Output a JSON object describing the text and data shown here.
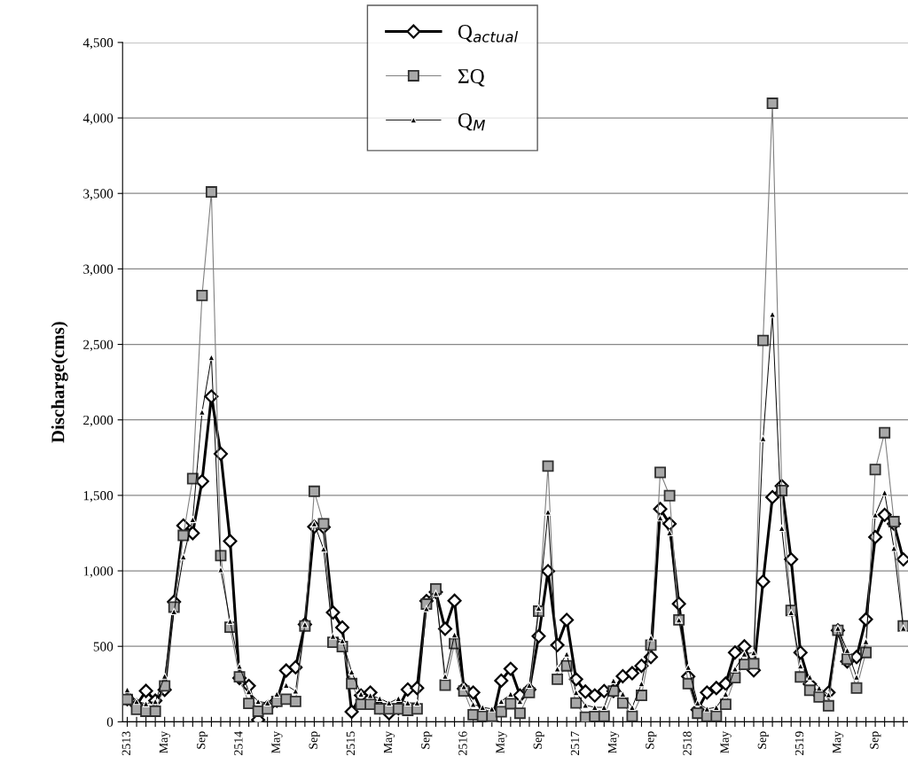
{
  "chart_data": {
    "type": "line",
    "ylabel": "Discharge(cms)",
    "categories": [
      "2513",
      null,
      null,
      null,
      "May",
      null,
      null,
      null,
      "Sep",
      null,
      null,
      null,
      "2514",
      null,
      null,
      null,
      "May",
      null,
      null,
      null,
      "Sep",
      null,
      null,
      null,
      "2515",
      null,
      null,
      null,
      "May",
      null,
      null,
      null,
      "Sep",
      null,
      null,
      null,
      "2516",
      null,
      null,
      null,
      "May",
      null,
      null,
      null,
      "Sep",
      null,
      null,
      null,
      "2517",
      null,
      null,
      null,
      "May",
      null,
      null,
      null,
      "Sep",
      null,
      null,
      null,
      "2518",
      null,
      null,
      null,
      "May",
      null,
      null,
      null,
      "Sep",
      null,
      null,
      null,
      "2519",
      null,
      null,
      null,
      "May",
      null,
      null,
      null,
      "Sep",
      null,
      null,
      null
    ],
    "ylim": [
      0,
      4500
    ],
    "yticks": [
      0,
      500,
      {
        "value": 1000,
        "label": "1,000"
      },
      {
        "value": 1500,
        "label": "1,500"
      },
      {
        "value": 2000,
        "label": "2,000"
      },
      {
        "value": 2500,
        "label": "2,500"
      },
      {
        "value": 3000,
        "label": "3,000"
      },
      {
        "value": 3500,
        "label": "3,500"
      },
      {
        "value": 4000,
        "label": "4,000"
      },
      {
        "value": 4500,
        "label": "4,500"
      }
    ],
    "grid": "y",
    "legend": "top",
    "series": [
      {
        "name": "Q$_{actual}$",
        "color": "#000000",
        "marker": "diamond",
        "values": [
          150,
          110,
          205,
          140,
          212,
          795,
          1300,
          1250,
          1593,
          2155,
          1775,
          1197,
          290,
          238,
          13,
          100,
          140,
          340,
          361,
          645,
          1292,
          1290,
          724,
          625,
          67,
          175,
          194,
          96,
          57,
          90,
          214,
          224,
          800,
          860,
          616,
          802,
          220,
          194,
          57,
          0,
          273,
          351,
          175,
          214,
          567,
          998,
          508,
          675,
          282,
          200,
          175,
          204,
          204,
          302,
          322,
          371,
          429,
          1410,
          1312,
          782,
          300,
          80,
          194,
          224,
          253,
          459,
          500,
          341,
          929,
          1488,
          1562,
          1076,
          459,
          250,
          180,
          194,
          606,
          400,
          429,
          679,
          1224,
          1371,
          1312,
          1076
        ]
      },
      {
        "name": "ΣQ",
        "color": "#808080",
        "marker": "square",
        "values": [
          148,
          83,
          70,
          70,
          238,
          760,
          1235,
          1611,
          2824,
          3510,
          1101,
          627,
          298,
          122,
          70,
          86,
          135,
          150,
          135,
          635,
          1527,
          1312,
          527,
          498,
          253,
          116,
          116,
          86,
          86,
          86,
          76,
          86,
          780,
          880,
          243,
          518,
          204,
          47,
          37,
          37,
          67,
          120,
          57,
          194,
          733,
          1694,
          282,
          371,
          125,
          30,
          35,
          37,
          204,
          125,
          37,
          175,
          508,
          1652,
          1498,
          675,
          253,
          57,
          37,
          37,
          116,
          292,
          380,
          385,
          2526,
          4097,
          1532,
          738,
          297,
          209,
          165,
          106,
          606,
          415,
          224,
          459,
          1671,
          1915,
          1326,
          635
        ]
      },
      {
        "name": "Q$_{M}$",
        "color": "#000000",
        "marker": "triangle",
        "values": [
          212,
          135,
          120,
          135,
          303,
          730,
          1093,
          1340,
          2052,
          2414,
          1008,
          666,
          368,
          200,
          135,
          125,
          184,
          243,
          204,
          645,
          1312,
          1145,
          567,
          537,
          331,
          184,
          175,
          155,
          125,
          155,
          125,
          125,
          750,
          851,
          302,
          576,
          233,
          116,
          96,
          86,
          135,
          184,
          135,
          243,
          753,
          1390,
          351,
          449,
          194,
          110,
          96,
          96,
          273,
          184,
          96,
          253,
          557,
          1351,
          1253,
          675,
          361,
          125,
          86,
          96,
          184,
          351,
          450,
          458,
          1876,
          2700,
          1282,
          724,
          370,
          297,
          224,
          179,
          620,
          473,
          297,
          532,
          1371,
          1518,
          1150,
          620
        ]
      }
    ]
  }
}
